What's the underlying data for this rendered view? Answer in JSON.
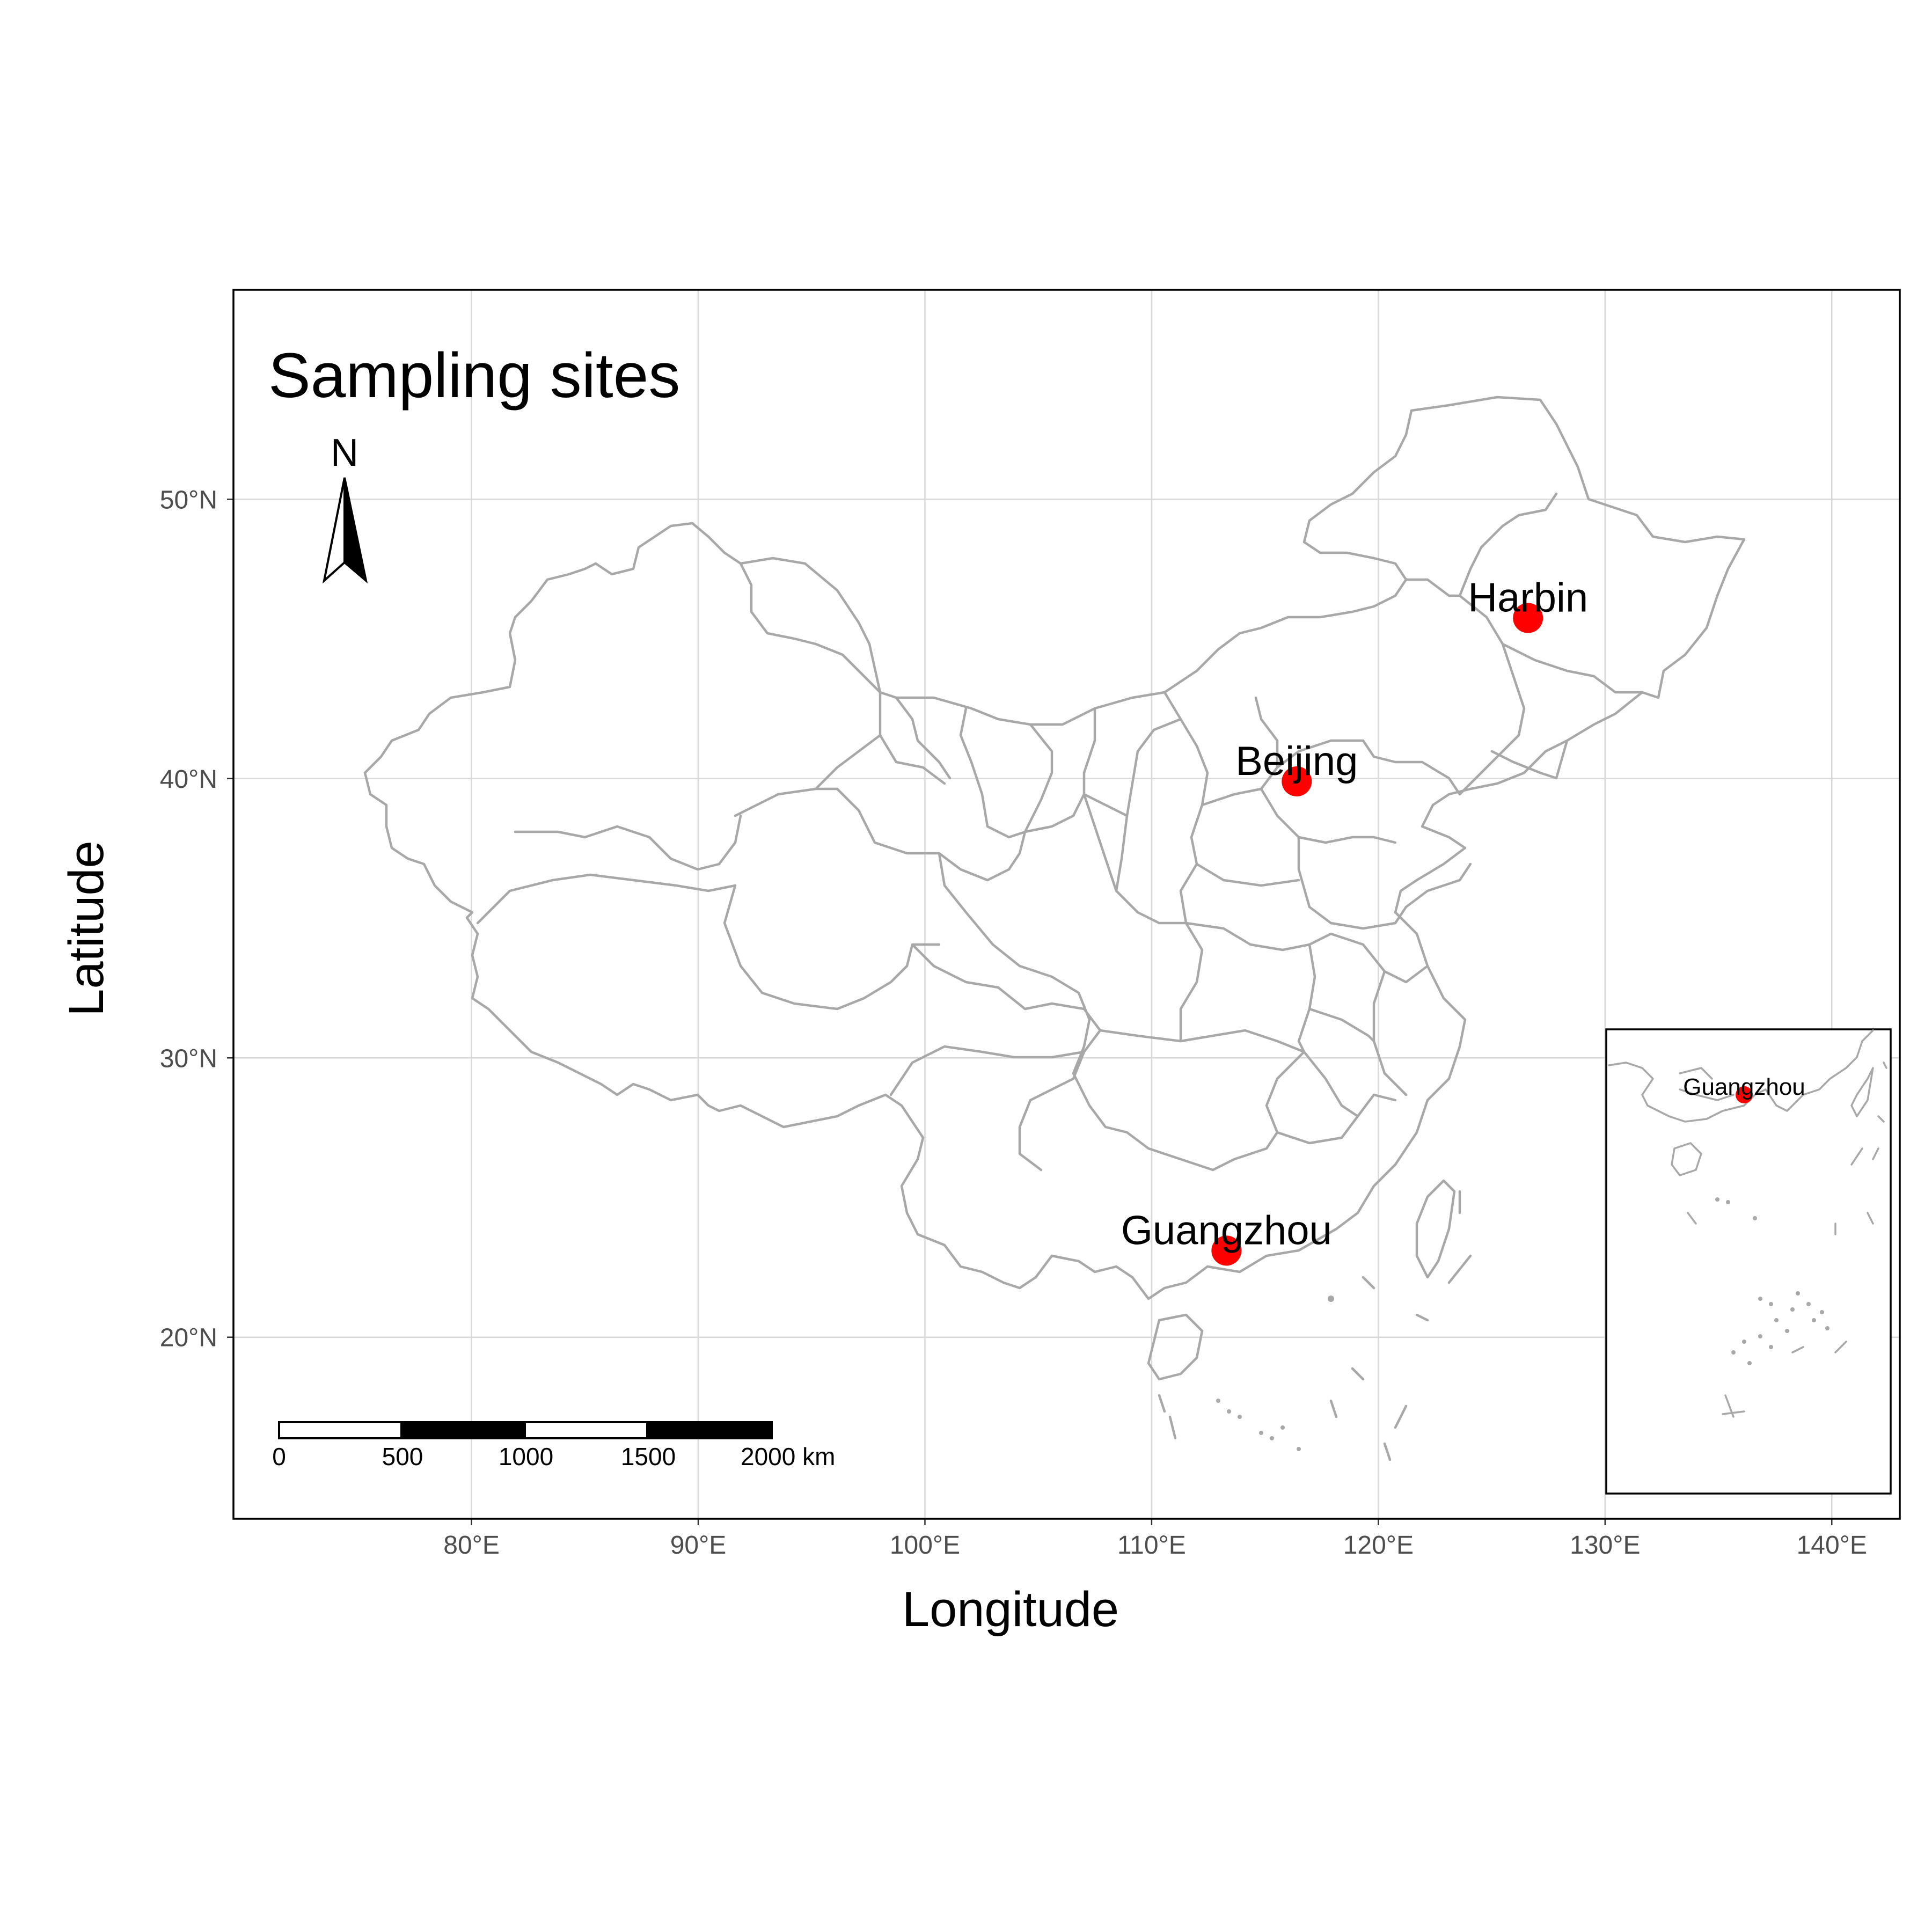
{
  "title": "Sampling sites",
  "north_arrow": {
    "label": "N"
  },
  "axes": {
    "x": {
      "label": "Longitude",
      "lim": [
        69.5,
        143
      ],
      "ticks": [
        80,
        90,
        100,
        110,
        120,
        130,
        140
      ],
      "tick_labels": [
        "80°E",
        "90°E",
        "100°E",
        "110°E",
        "120°E",
        "130°E",
        "140°E"
      ]
    },
    "y": {
      "label": "Latitude",
      "lim": [
        13.5,
        57.5
      ],
      "ticks": [
        20,
        30,
        40,
        50
      ],
      "tick_labels": [
        "20°N",
        "30°N",
        "40°N",
        "50°N"
      ]
    },
    "grid": true
  },
  "scale_bar": {
    "labels": [
      "0",
      "500",
      "1000",
      "1500"
    ],
    "last_label": "2000 km",
    "segments": 4
  },
  "sites": [
    {
      "name": "Harbin",
      "lon": 126.6,
      "lat": 45.75
    },
    {
      "name": "Beijing",
      "lon": 116.4,
      "lat": 39.9
    },
    {
      "name": "Guangzhou",
      "lon": 113.3,
      "lat": 23.1
    }
  ],
  "inset": {
    "site_label": "Guangzhou"
  },
  "colors": {
    "site_marker": "#ff0000",
    "border": "#a8a8a8",
    "grid": "#d9d9d9",
    "text": "#000000",
    "tick_label": "#4d4d4d"
  }
}
